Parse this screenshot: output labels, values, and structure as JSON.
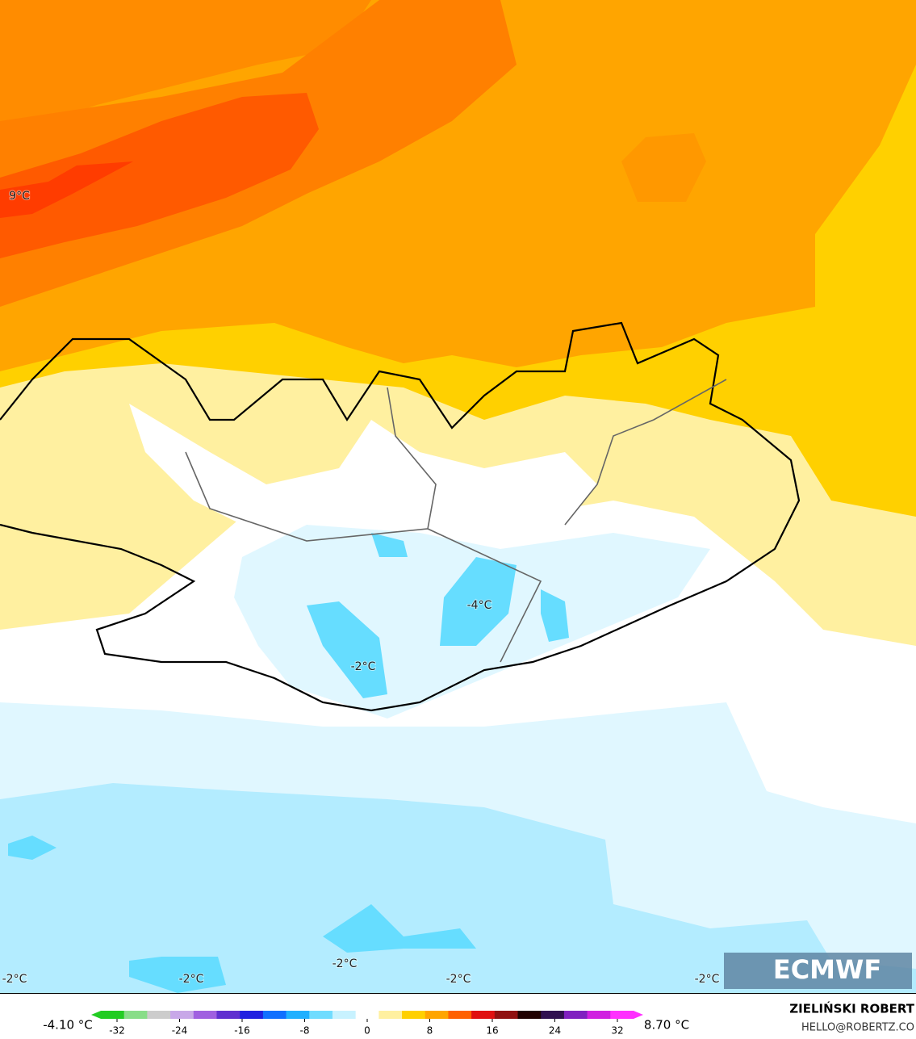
{
  "map": {
    "labels": [
      "9°C",
      "-4°C",
      "-2°C",
      "-2°C",
      "-2°C",
      "-2°C",
      "-2°C",
      "-2°C"
    ]
  },
  "colorbar": {
    "min_label": "-4.10 °C",
    "max_label": "8.70 °C",
    "ticks": [
      -32,
      -24,
      -16,
      -8,
      0,
      8,
      16,
      24,
      32
    ],
    "colors": [
      "#22cc22",
      "#88dd88",
      "#cccccc",
      "#c8a8e8",
      "#a060e0",
      "#6030d0",
      "#2020e0",
      "#1070ff",
      "#20b0ff",
      "#70dcff",
      "#c8f2ff",
      "#ffffff",
      "#fff0a0",
      "#ffd000",
      "#ffa500",
      "#ff6000",
      "#e01010",
      "#901010",
      "#200000",
      "#301050",
      "#8020c0",
      "#d020e0",
      "#ff30ff"
    ]
  },
  "branding": {
    "logo": "ECMWF",
    "author": "ZIELIŃSKI ROBERT",
    "contact": "HELLO@ROBERTZ.CO"
  }
}
